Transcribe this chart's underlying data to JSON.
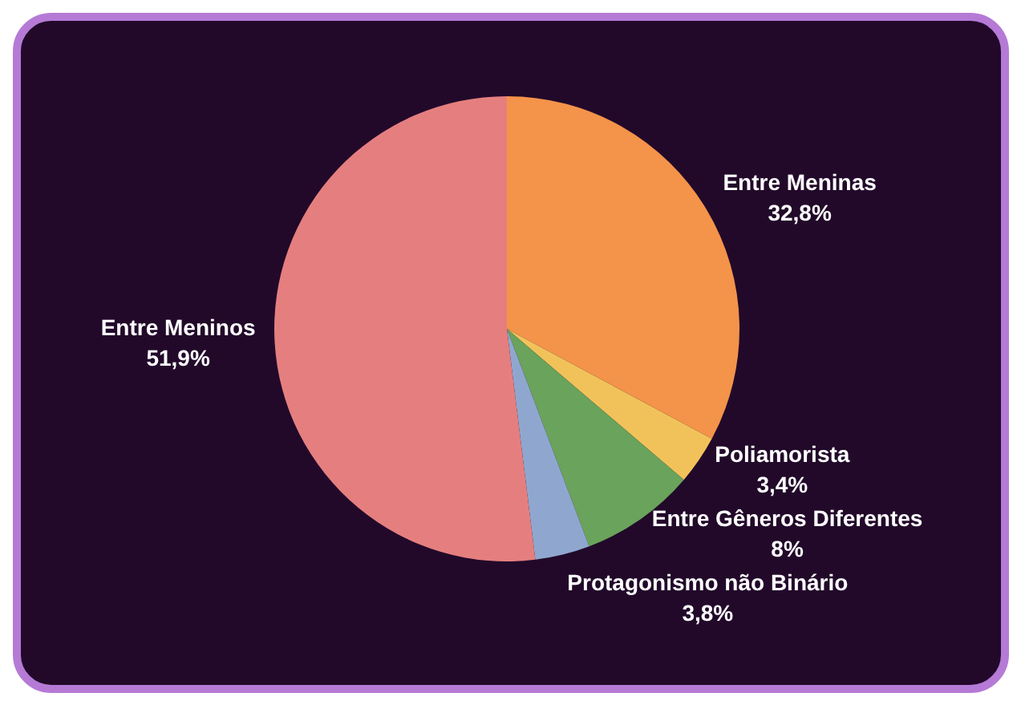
{
  "chart_data": {
    "type": "pie",
    "categories": [
      "Entre Meninas",
      "Poliamorista",
      "Entre Gêneros Diferentes",
      "Protagonismo não Binário",
      "Entre Meninos"
    ],
    "values": [
      32.8,
      3.4,
      8,
      3.8,
      51.9
    ],
    "colors": [
      "#f4934a",
      "#f2c25a",
      "#6aa35b",
      "#8fa7cf",
      "#e57f7f"
    ],
    "value_labels": [
      "32,8%",
      "3,4%",
      "8%",
      "3,8%",
      "51,9%"
    ]
  }
}
